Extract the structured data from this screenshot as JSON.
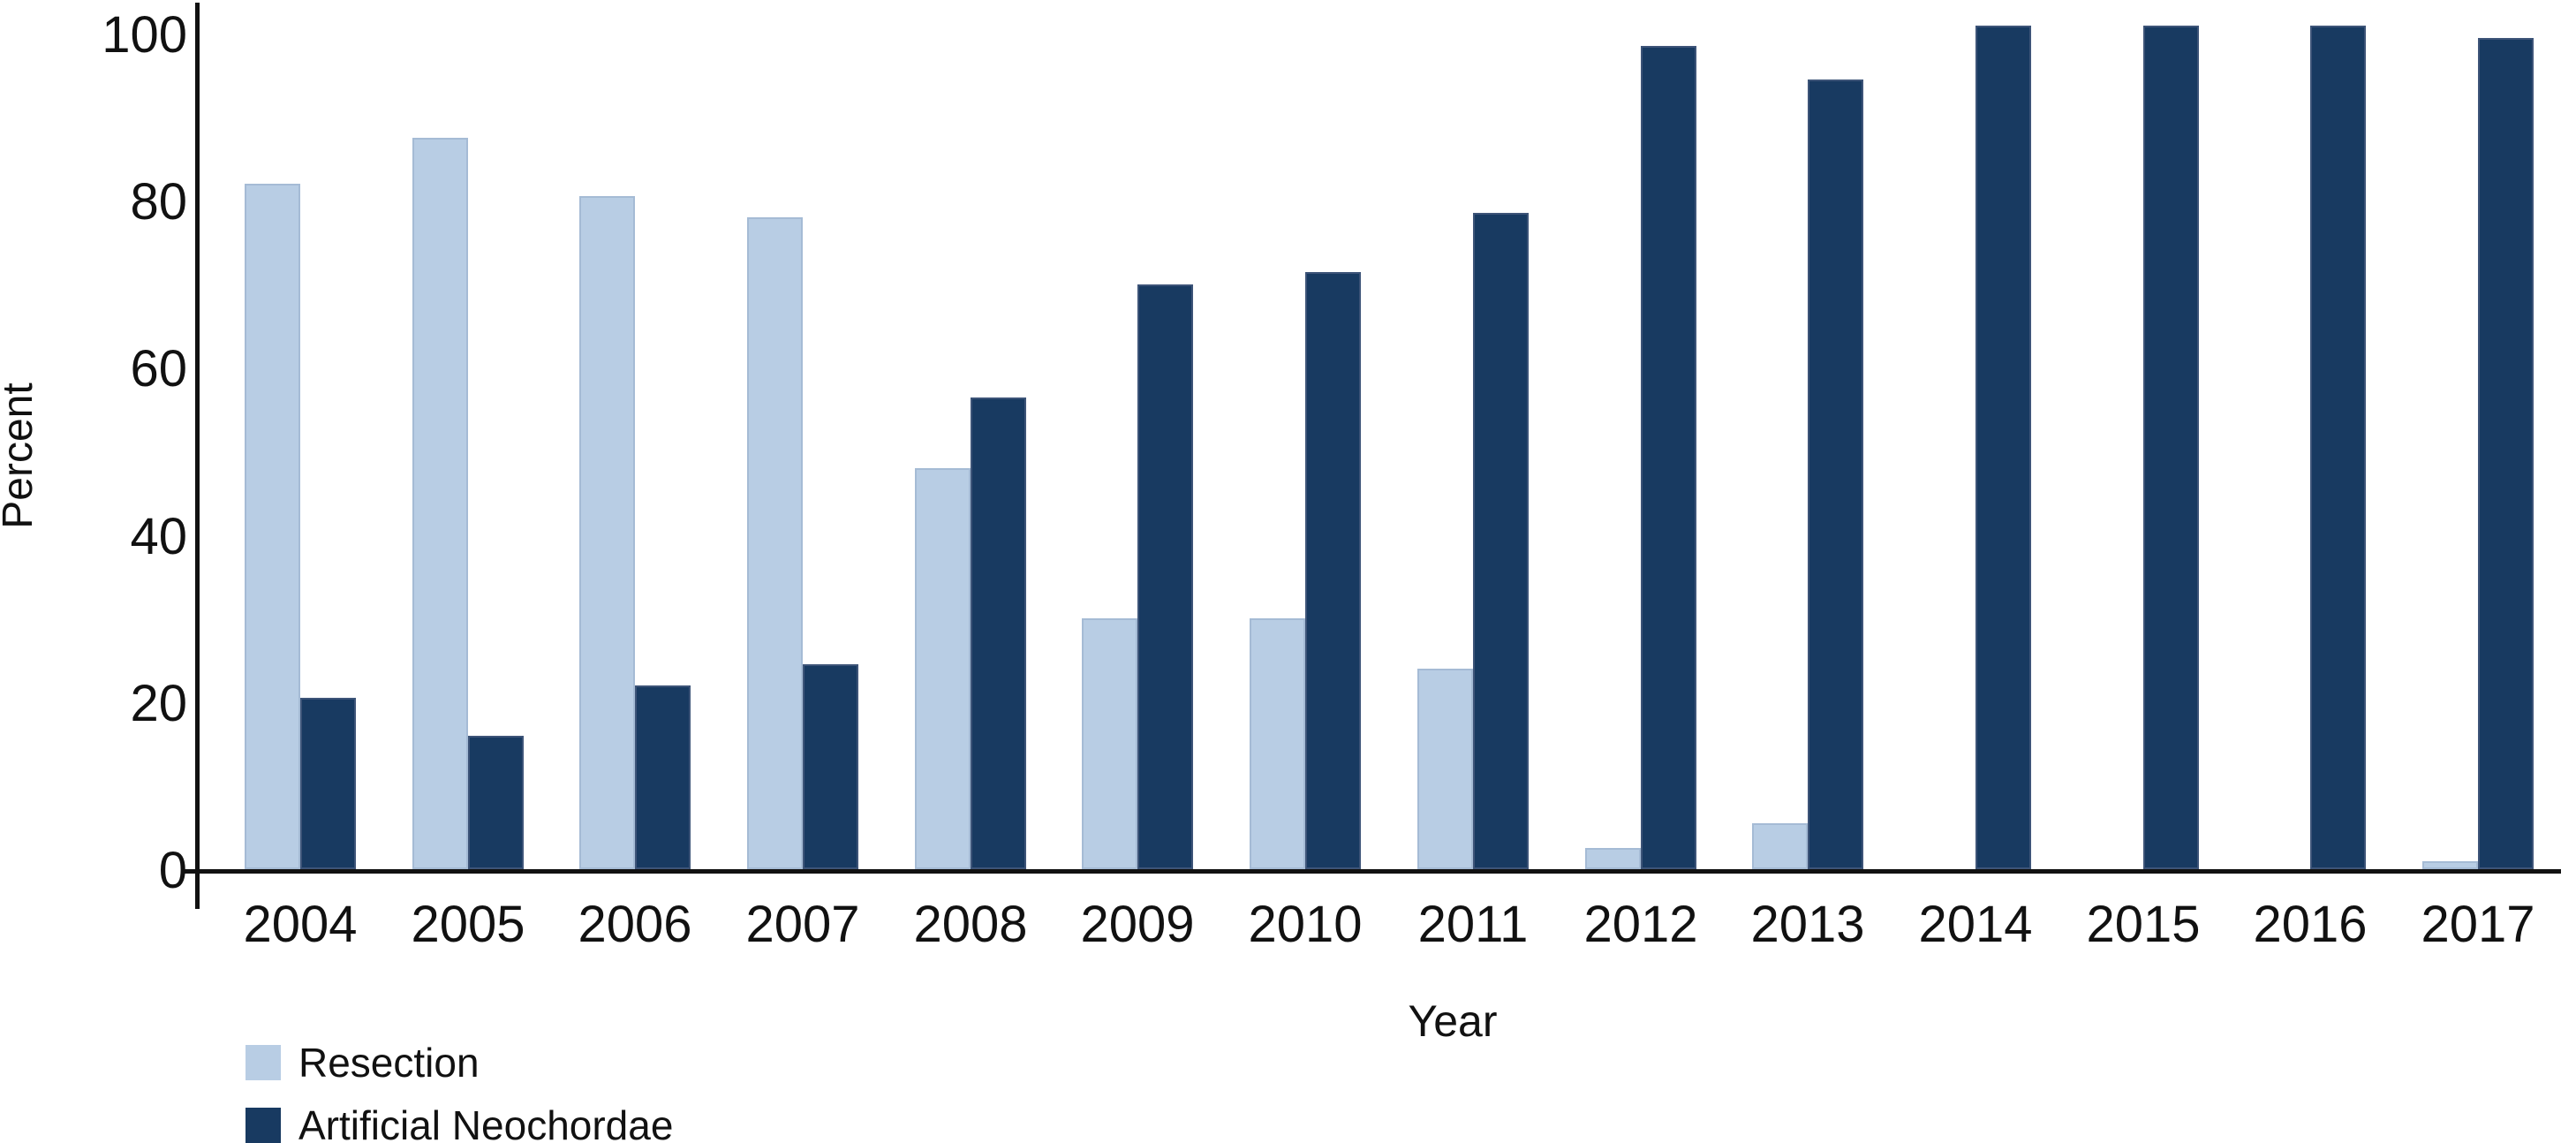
{
  "figure": {
    "y_axis_title": "Percent",
    "x_axis_title": "Year"
  },
  "chart_data": {
    "type": "bar",
    "title": "",
    "xlabel": "Year",
    "ylabel": "Percent",
    "ylim": [
      0,
      100
    ],
    "yticks": [
      0,
      20,
      40,
      60,
      80,
      100
    ],
    "grid": false,
    "legend_position": "bottom-left",
    "categories": [
      "2004",
      "2005",
      "2006",
      "2007",
      "2008",
      "2009",
      "2010",
      "2011",
      "2012",
      "2013",
      "2014",
      "2015",
      "2016",
      "2017"
    ],
    "series": [
      {
        "name": "Resection",
        "color": "#b8cde4",
        "values": [
          82,
          87.5,
          80.5,
          78,
          48,
          30,
          30,
          24,
          2.5,
          5.5,
          0,
          0,
          0,
          1
        ]
      },
      {
        "name": "Artificial Neochordae",
        "color": "#183a61",
        "values": [
          20.5,
          16,
          22,
          24.5,
          56.5,
          70,
          71.5,
          78.5,
          98.5,
          94.5,
          101,
          101,
          101,
          99.5
        ]
      }
    ]
  }
}
